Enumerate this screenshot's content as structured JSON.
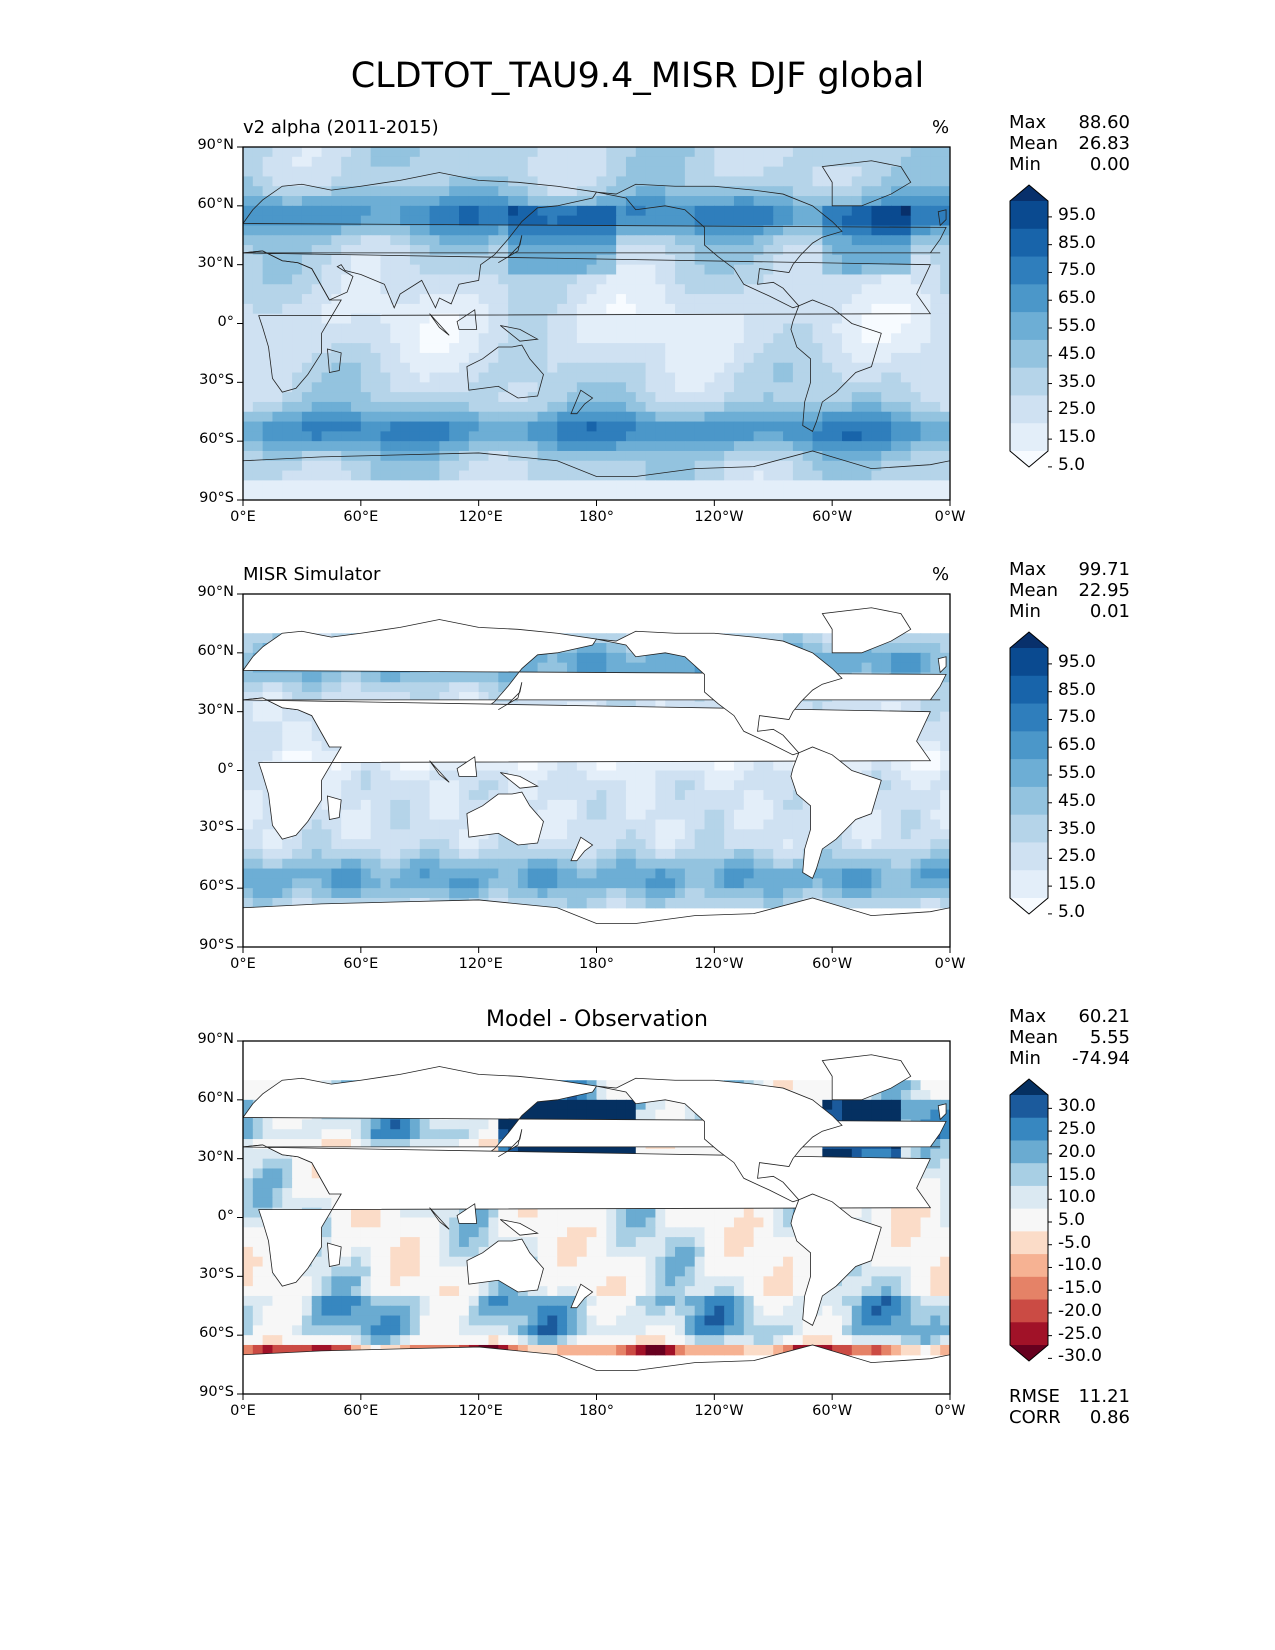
{
  "figure": {
    "title": "CLDTOT_TAU9.4_MISR DJF global",
    "x_ticks": [
      "0°E",
      "60°E",
      "120°E",
      "180°",
      "120°W",
      "60°W",
      "0°W"
    ],
    "y_ticks": [
      "90°N",
      "60°N",
      "30°N",
      "0°",
      "30°S",
      "60°S",
      "90°S"
    ]
  },
  "panels": [
    {
      "title": "v2 alpha (2011-2015)",
      "units": "%",
      "stats": [
        {
          "label": "Max",
          "value": "88.60"
        },
        {
          "label": "Mean",
          "value": "26.83"
        },
        {
          "label": "Min",
          "value": "0.00"
        }
      ],
      "colorbar_labels": [
        "95.0",
        "85.0",
        "75.0",
        "65.0",
        "55.0",
        "45.0",
        "35.0",
        "25.0",
        "15.0",
        "5.0"
      ]
    },
    {
      "title": "MISR Simulator",
      "units": "%",
      "stats": [
        {
          "label": "Max",
          "value": "99.71"
        },
        {
          "label": "Mean",
          "value": "22.95"
        },
        {
          "label": "Min",
          "value": "0.01"
        }
      ],
      "colorbar_labels": [
        "95.0",
        "85.0",
        "75.0",
        "65.0",
        "55.0",
        "45.0",
        "35.0",
        "25.0",
        "15.0",
        "5.0"
      ]
    },
    {
      "title": "Model - Observation",
      "stats": [
        {
          "label": "Max",
          "value": "60.21"
        },
        {
          "label": "Mean",
          "value": "5.55"
        },
        {
          "label": "Min",
          "value": "-74.94"
        }
      ],
      "bottom_stats": [
        {
          "label": "RMSE",
          "value": "11.21"
        },
        {
          "label": "CORR",
          "value": "0.86"
        }
      ],
      "colorbar_labels": [
        "30.0",
        "25.0",
        "20.0",
        "15.0",
        "10.0",
        "5.0",
        "-5.0",
        "-10.0",
        "-15.0",
        "-20.0",
        "-25.0",
        "-30.0"
      ]
    }
  ],
  "colors": {
    "blues": [
      "#f7fbff",
      "#e3eef9",
      "#cfe1f2",
      "#b5d4e9",
      "#93c3df",
      "#6daed5",
      "#4b97c9",
      "#2f7ebc",
      "#1864aa",
      "#0a4a90",
      "#08306b"
    ],
    "diverging": [
      "#67001f",
      "#a11228",
      "#cb4b44",
      "#e58267",
      "#f6b293",
      "#fbdcc8",
      "#f7f7f7",
      "#dbe9f2",
      "#a8cfe4",
      "#6aabd1",
      "#3787c0",
      "#1b5a9c",
      "#053061"
    ],
    "land": "#ffffff",
    "coast": "#222222"
  }
}
